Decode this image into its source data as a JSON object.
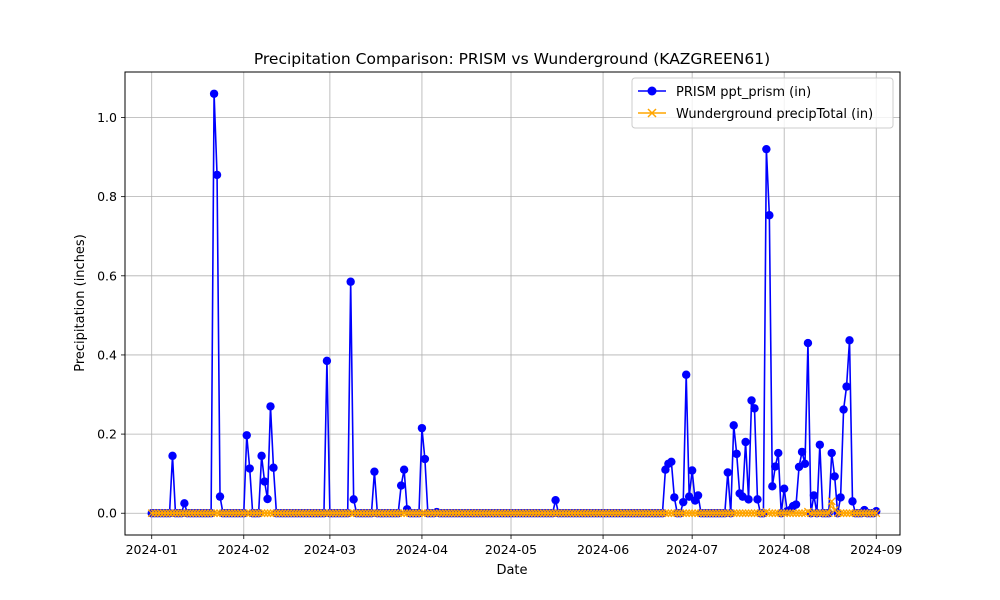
{
  "chart_data": {
    "type": "line",
    "title": "Precipitation Comparison: PRISM vs Wunderground (KAZGREEN61)",
    "xlabel": "Date",
    "ylabel": "Precipitation (inches)",
    "xlim": [
      "2023-12-23",
      "2024-09-09"
    ],
    "ylim": [
      -0.055,
      1.115
    ],
    "x_ticks": [
      "2024-01",
      "2024-02",
      "2024-03",
      "2024-04",
      "2024-05",
      "2024-06",
      "2024-07",
      "2024-08",
      "2024-09"
    ],
    "y_ticks": [
      "0.0",
      "0.2",
      "0.4",
      "0.6",
      "0.8",
      "1.0"
    ],
    "y_tick_values": [
      0,
      0.2,
      0.4,
      0.6,
      0.8,
      1.0
    ],
    "grid": true,
    "legend_position": "top-right",
    "series": [
      {
        "name": "PRISM ppt_prism (in)",
        "color": "#0000ff",
        "marker": "circle",
        "baseline_range": [
          "2024-01-01",
          "2024-09-01"
        ],
        "baseline_value": 0,
        "nonzero": [
          [
            "2024-01-08",
            0.145
          ],
          [
            "2024-01-12",
            0.025
          ],
          [
            "2024-01-22",
            1.06
          ],
          [
            "2024-01-23",
            0.855
          ],
          [
            "2024-01-24",
            0.042
          ],
          [
            "2024-02-02",
            0.197
          ],
          [
            "2024-02-03",
            0.113
          ],
          [
            "2024-02-07",
            0.145
          ],
          [
            "2024-02-08",
            0.08
          ],
          [
            "2024-02-09",
            0.036
          ],
          [
            "2024-02-10",
            0.27
          ],
          [
            "2024-02-11",
            0.115
          ],
          [
            "2024-02-29",
            0.385
          ],
          [
            "2024-03-08",
            0.585
          ],
          [
            "2024-03-09",
            0.035
          ],
          [
            "2024-03-16",
            0.105
          ],
          [
            "2024-03-25",
            0.07
          ],
          [
            "2024-03-26",
            0.11
          ],
          [
            "2024-03-27",
            0.01
          ],
          [
            "2024-04-01",
            0.215
          ],
          [
            "2024-04-02",
            0.137
          ],
          [
            "2024-04-06",
            0.003
          ],
          [
            "2024-05-16",
            0.033
          ],
          [
            "2024-06-22",
            0.11
          ],
          [
            "2024-06-23",
            0.125
          ],
          [
            "2024-06-24",
            0.13
          ],
          [
            "2024-06-25",
            0.04
          ],
          [
            "2024-06-28",
            0.028
          ],
          [
            "2024-06-29",
            0.35
          ],
          [
            "2024-06-30",
            0.042
          ],
          [
            "2024-07-01",
            0.108
          ],
          [
            "2024-07-02",
            0.032
          ],
          [
            "2024-07-03",
            0.045
          ],
          [
            "2024-07-13",
            0.103
          ],
          [
            "2024-07-15",
            0.222
          ],
          [
            "2024-07-16",
            0.15
          ],
          [
            "2024-07-17",
            0.05
          ],
          [
            "2024-07-18",
            0.042
          ],
          [
            "2024-07-19",
            0.18
          ],
          [
            "2024-07-20",
            0.035
          ],
          [
            "2024-07-21",
            0.285
          ],
          [
            "2024-07-22",
            0.265
          ],
          [
            "2024-07-23",
            0.035
          ],
          [
            "2024-07-26",
            0.92
          ],
          [
            "2024-07-27",
            0.753
          ],
          [
            "2024-07-28",
            0.068
          ],
          [
            "2024-07-29",
            0.118
          ],
          [
            "2024-07-30",
            0.152
          ],
          [
            "2024-08-01",
            0.062
          ],
          [
            "2024-08-02",
            0.005
          ],
          [
            "2024-08-03",
            0.008
          ],
          [
            "2024-08-04",
            0.018
          ],
          [
            "2024-08-05",
            0.022
          ],
          [
            "2024-08-06",
            0.117
          ],
          [
            "2024-08-07",
            0.155
          ],
          [
            "2024-08-08",
            0.125
          ],
          [
            "2024-08-09",
            0.43
          ],
          [
            "2024-08-11",
            0.045
          ],
          [
            "2024-08-13",
            0.173
          ],
          [
            "2024-08-17",
            0.152
          ],
          [
            "2024-08-18",
            0.093
          ],
          [
            "2024-08-20",
            0.04
          ],
          [
            "2024-08-21",
            0.262
          ],
          [
            "2024-08-22",
            0.32
          ],
          [
            "2024-08-23",
            0.437
          ],
          [
            "2024-08-24",
            0.03
          ],
          [
            "2024-08-28",
            0.008
          ],
          [
            "2024-09-01",
            0.005
          ]
        ]
      },
      {
        "name": "Wunderground precipTotal (in)",
        "color": "#ffa500",
        "marker": "x",
        "baseline_range": [
          "2024-01-01",
          "2024-09-01"
        ],
        "baseline_value": 0,
        "nonzero": [
          [
            "2024-07-26",
            0.003
          ],
          [
            "2024-08-09",
            0.004
          ],
          [
            "2024-08-17",
            0.03
          ],
          [
            "2024-08-18",
            0.008
          ]
        ]
      }
    ]
  }
}
